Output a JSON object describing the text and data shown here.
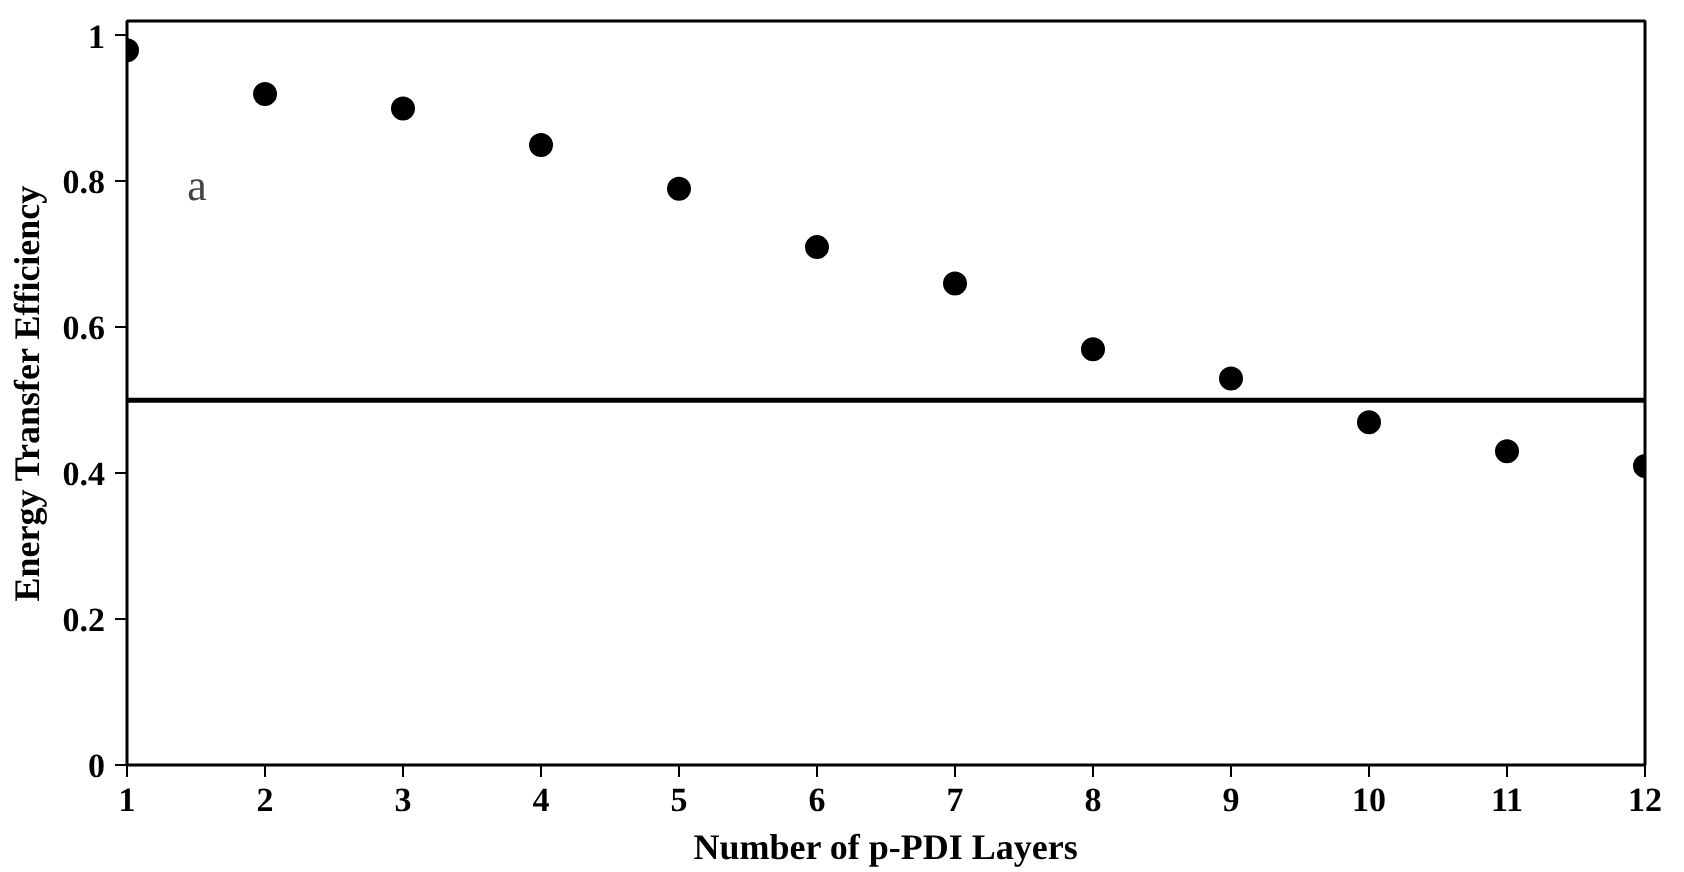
{
  "chart_data": {
    "type": "scatter",
    "xlabel": "Number of p-PDI Layers",
    "ylabel": "Energy Transfer Efficiency",
    "x": [
      1,
      2,
      3,
      4,
      5,
      6,
      7,
      8,
      9,
      10,
      11,
      12
    ],
    "values": [
      0.98,
      0.92,
      0.9,
      0.85,
      0.79,
      0.71,
      0.66,
      0.57,
      0.53,
      0.47,
      0.43,
      0.41
    ],
    "color": "#000000",
    "marker": "circle",
    "xlim": [
      1,
      12
    ],
    "xticks": [
      1,
      2,
      3,
      4,
      5,
      6,
      7,
      8,
      9,
      10,
      11,
      12
    ],
    "ylim": [
      0,
      1.02
    ],
    "yticks": [
      0,
      {
        "value": 0.2,
        "label": "0.2"
      },
      {
        "value": 0.4,
        "label": "0.4"
      },
      {
        "value": 0.6,
        "label": "0.6"
      },
      {
        "value": 0.8,
        "label": "0.8"
      },
      1
    ],
    "ref_lines": [
      {
        "axis": "y",
        "value": 0.5,
        "color": "#000000"
      }
    ],
    "annotations": [
      "a"
    ],
    "grid": false
  }
}
